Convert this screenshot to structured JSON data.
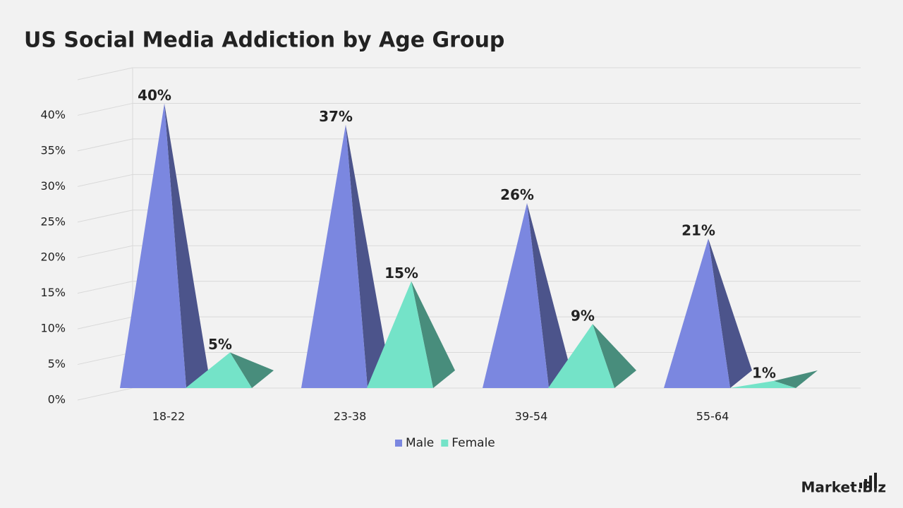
{
  "chart_data": {
    "type": "pyramid3d",
    "title": "US Social Media Addiction by Age Group",
    "categories": [
      "18-22",
      "23-38",
      "39-54",
      "55-64"
    ],
    "series": [
      {
        "name": "Male",
        "color": "#7b87e0",
        "values": [
          40,
          37,
          26,
          21
        ],
        "value_labels": [
          "40%",
          "37%",
          "26%",
          "21%"
        ]
      },
      {
        "name": "Female",
        "color": "#74e3c8",
        "values": [
          5,
          15,
          9,
          1
        ],
        "value_labels": [
          "5%",
          "15%",
          "9%",
          "1%"
        ]
      }
    ],
    "ylim": [
      0,
      45
    ],
    "yticks": [
      {
        "value": 0,
        "label": "0%"
      },
      {
        "value": 5,
        "label": "5%"
      },
      {
        "value": 10,
        "label": "10%"
      },
      {
        "value": 15,
        "label": "15%"
      },
      {
        "value": 20,
        "label": "20%"
      },
      {
        "value": 25,
        "label": "25%"
      },
      {
        "value": 30,
        "label": "30%"
      },
      {
        "value": 35,
        "label": "35%"
      },
      {
        "value": 40,
        "label": "40%"
      }
    ],
    "grid": true,
    "legend": "bottom"
  },
  "logo": "Market.Biz"
}
